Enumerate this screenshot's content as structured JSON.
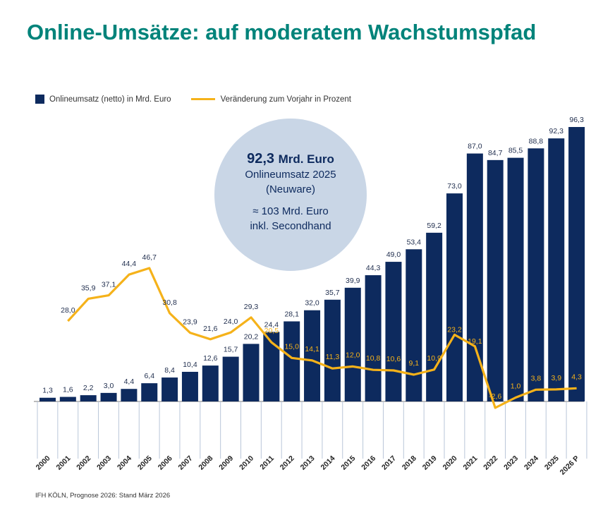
{
  "title": "Online-Umsätze: auf moderatem Wachstumspfad",
  "legend": {
    "bars": "Onlineumsatz (netto) in Mrd. Euro",
    "line": "Veränderung zum Vorjahr in Prozent"
  },
  "bubble": {
    "value": "92,3",
    "unit": "Mrd. Euro",
    "line1": "Onlineumsatz 2025",
    "line2": "(Neuware)",
    "line3": "≈ 103 Mrd. Euro",
    "line4": "inkl. Secondhand"
  },
  "source": "IFH KÖLN, Prognose 2026: Stand März 2026",
  "colors": {
    "bar": "#0d2a5e",
    "line": "#f5b21a",
    "title": "#00837a",
    "bubble": "#c9d6e6"
  },
  "chart_data": {
    "type": "bar",
    "categories": [
      "2000",
      "2001",
      "2002",
      "2003",
      "2004",
      "2005",
      "2006",
      "2007",
      "2008",
      "2009",
      "2010",
      "2011",
      "2012",
      "2013",
      "2014",
      "2015",
      "2016",
      "2017",
      "2018",
      "2019",
      "2020",
      "2021",
      "2022",
      "2023",
      "2024",
      "2025",
      "2026 P"
    ],
    "series": [
      {
        "name": "Onlineumsatz (netto) in Mrd. Euro",
        "type": "bar",
        "values": [
          1.3,
          1.6,
          2.2,
          3.0,
          4.4,
          6.4,
          8.4,
          10.4,
          12.6,
          15.7,
          20.2,
          24.4,
          28.1,
          32.0,
          35.7,
          39.9,
          44.3,
          49.0,
          53.4,
          59.2,
          73.0,
          87.0,
          84.7,
          85.5,
          88.8,
          92.3,
          96.3
        ],
        "labels": [
          "1,3",
          "1,6",
          "2,2",
          "3,0",
          "4,4",
          "6,4",
          "8,4",
          "10,4",
          "12,6",
          "15,7",
          "20,2",
          "24,4",
          "28,1",
          "32,0",
          "35,7",
          "39,9",
          "44,3",
          "49,0",
          "53,4",
          "59,2",
          "73,0",
          "87,0",
          "84,7",
          "85,5",
          "88,8",
          "92,3",
          "96,3"
        ]
      },
      {
        "name": "Veränderung zum Vorjahr in Prozent",
        "type": "line",
        "values": [
          null,
          28.0,
          35.9,
          37.1,
          44.4,
          46.7,
          30.8,
          23.9,
          21.6,
          24.0,
          29.3,
          20.5,
          15.0,
          14.1,
          11.3,
          12.0,
          10.8,
          10.6,
          9.1,
          10.9,
          23.2,
          19.1,
          -2.6,
          1.0,
          3.8,
          3.9,
          4.3
        ],
        "labels": [
          null,
          "28,0",
          "35,9",
          "37,1",
          "44,4",
          "46,7",
          "30,8",
          "23,9",
          "21,6",
          "24,0",
          "29,3",
          "20,5",
          "15,0",
          "14,1",
          "11,3",
          "12,0",
          "10,8",
          "10,6",
          "9,1",
          "10,9",
          "23,2",
          "19,1",
          "-2,6",
          "1,0",
          "3,8",
          "3,9",
          "4,3"
        ]
      }
    ],
    "ylim_bars": [
      0,
      96.3
    ],
    "ylim_line": [
      -2.6,
      46.7
    ],
    "legend_position": "top-left",
    "grid": false
  }
}
